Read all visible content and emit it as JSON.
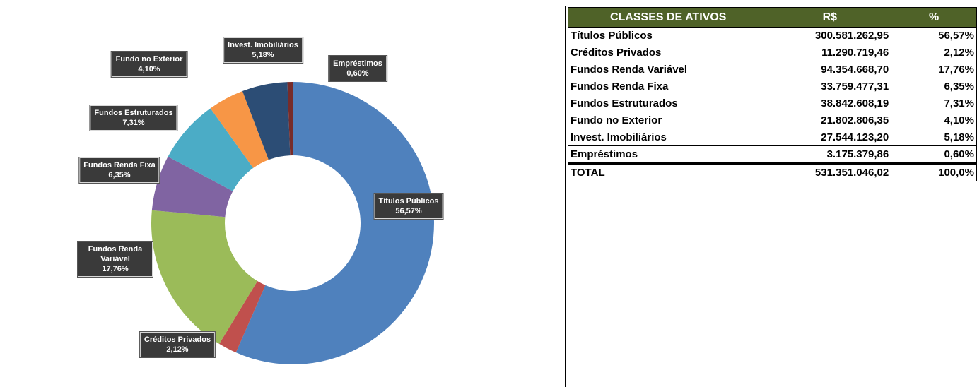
{
  "chart_data": {
    "type": "donut",
    "categories": [
      "Títulos Públicos",
      "Créditos Privados",
      "Fundos Renda Variável",
      "Fundos Renda Fixa",
      "Fundos Estruturados",
      "Fundo no Exterior",
      "Invest. Imobiliários",
      "Empréstimos"
    ],
    "values": [
      56.57,
      2.12,
      17.76,
      6.35,
      7.31,
      4.1,
      5.18,
      0.6
    ],
    "value_labels": [
      "56,57%",
      "2,12%",
      "17,76%",
      "6,35%",
      "7,31%",
      "4,10%",
      "5,18%",
      "0,60%"
    ],
    "colors": [
      "#4f81bd",
      "#c0504d",
      "#9bbb59",
      "#8064a2",
      "#4bacc6",
      "#f79646",
      "#2c4d75",
      "#772c2a"
    ]
  },
  "table": {
    "header": [
      "CLASSES DE ATIVOS",
      "R$",
      "%"
    ],
    "rows": [
      [
        "Títulos Públicos",
        "300.581.262,95",
        "56,57%"
      ],
      [
        "Créditos Privados",
        "11.290.719,46",
        "2,12%"
      ],
      [
        "Fundos Renda Variável",
        "94.354.668,70",
        "17,76%"
      ],
      [
        "Fundos Renda Fixa",
        "33.759.477,31",
        "6,35%"
      ],
      [
        "Fundos Estruturados",
        "38.842.608,19",
        "7,31%"
      ],
      [
        "Fundo no Exterior",
        "21.802.806,35",
        "4,10%"
      ],
      [
        "Invest. Imobiliários",
        "27.544.123,20",
        "5,18%"
      ],
      [
        "Empréstimos",
        "3.175.379,86",
        "0,60%"
      ]
    ],
    "total": [
      "TOTAL",
      "531.351.046,02",
      "100,0%"
    ]
  }
}
